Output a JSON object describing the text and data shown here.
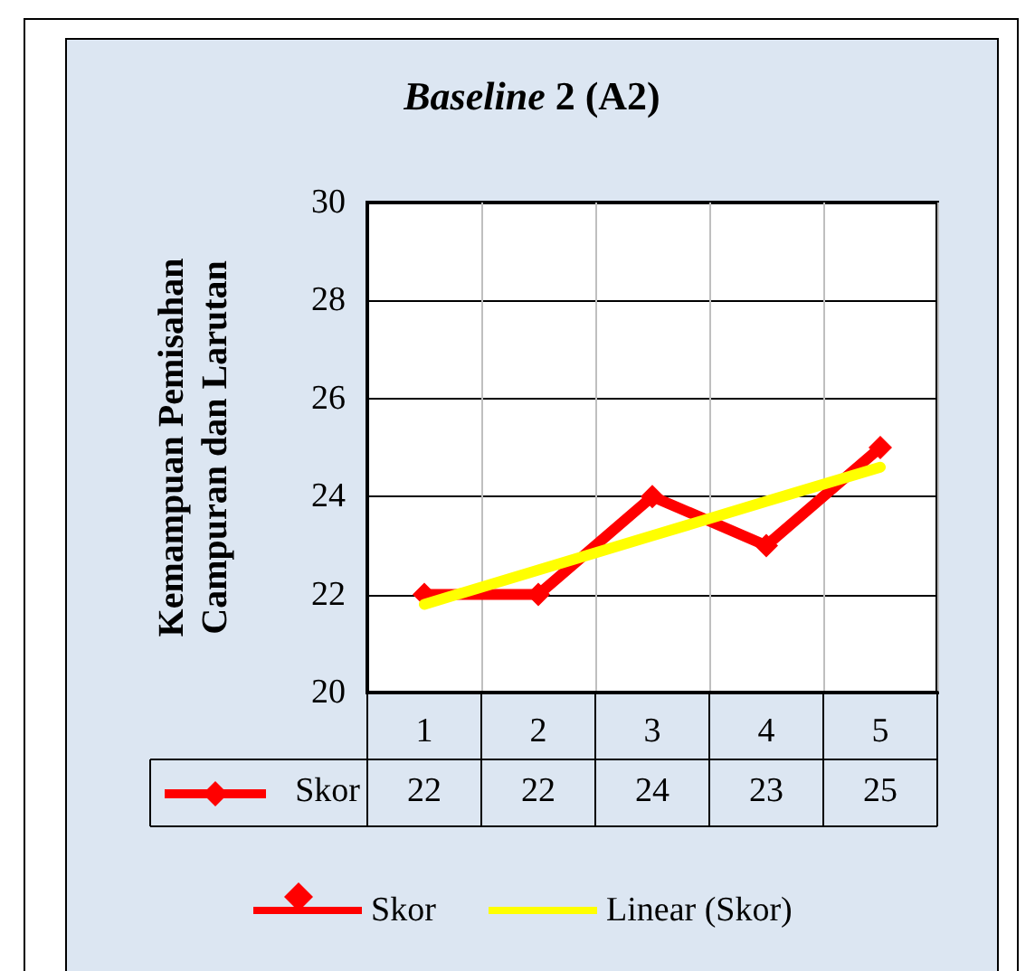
{
  "chart_data": {
    "type": "line",
    "title": "Baseline 2 (A2)",
    "ylabel": "Kemampuan Pemisahan\nCampuran dan Larutan",
    "categories": [
      "1",
      "2",
      "3",
      "4",
      "5"
    ],
    "series": [
      {
        "name": "Skor",
        "color": "#ff0000",
        "values": [
          22,
          22,
          24,
          23,
          25
        ],
        "marker": "diamond",
        "value_labels": [
          "22",
          "22",
          "24",
          "23",
          "25"
        ]
      },
      {
        "name": "Linear (Skor)",
        "color": "#ffff00",
        "values": [
          21.8,
          22.5,
          23.2,
          23.9,
          24.6
        ],
        "marker": "none"
      }
    ],
    "ylim": [
      20,
      30
    ],
    "yticks": [
      20,
      22,
      24,
      26,
      28,
      30
    ],
    "grid": true,
    "legend": "bottom"
  }
}
